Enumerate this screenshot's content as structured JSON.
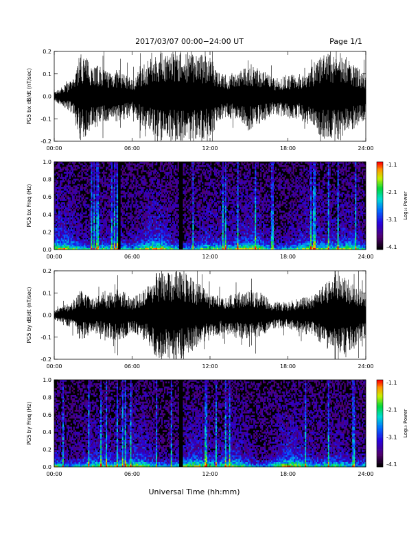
{
  "header": {
    "title": "2017/03/07   00:00−24:00 UT",
    "page": "Page 1/1"
  },
  "footer": {
    "xlabel": "Universal Time (hh:mm)"
  },
  "x_ticks": [
    "00:00",
    "06:00",
    "12:00",
    "18:00",
    "24:00"
  ],
  "colorbar": {
    "label": "Log₁₀ Power",
    "ticks": [
      "-1.1",
      "-2.1",
      "-3.1",
      "-4.1"
    ],
    "range": [
      -4.1,
      -1.1
    ]
  },
  "chart_data": [
    {
      "type": "line",
      "ylabel": "PG5 bx dB/dt (nT/sec)",
      "xlim": [
        0,
        24
      ],
      "ylim": [
        -0.2,
        0.2
      ],
      "y_ticks": [
        "0.2",
        "0.1",
        "0.0",
        "-0.1",
        "-0.2"
      ],
      "envelope": {
        "x": [
          0,
          1,
          1.5,
          2,
          3,
          4,
          5,
          6,
          7,
          8,
          9,
          9.5,
          10,
          11,
          12,
          13,
          14,
          15,
          16,
          17,
          18,
          19,
          20,
          21,
          22,
          23,
          24
        ],
        "amplitude": [
          0.02,
          0.06,
          0.08,
          0.2,
          0.15,
          0.12,
          0.12,
          0.08,
          0.15,
          0.2,
          0.2,
          0.2,
          0.2,
          0.2,
          0.18,
          0.1,
          0.1,
          0.15,
          0.12,
          0.08,
          0.1,
          0.1,
          0.15,
          0.2,
          0.2,
          0.15,
          0.1
        ]
      }
    },
    {
      "type": "heatmap",
      "ylabel": "PG5 bx Freq (Hz)",
      "xlim": [
        0,
        24
      ],
      "ylim": [
        0,
        1.0
      ],
      "y_ticks": [
        "1.0",
        "0.8",
        "0.6",
        "0.4",
        "0.2",
        "0.0"
      ]
    },
    {
      "type": "line",
      "ylabel": "PG5 by dB/dt (nT/sec)",
      "xlim": [
        0,
        24
      ],
      "ylim": [
        -0.2,
        0.2
      ],
      "y_ticks": [
        "0.2",
        "0.1",
        "0.0",
        "-0.1",
        "-0.2"
      ],
      "envelope": {
        "x": [
          0,
          1,
          1.5,
          2,
          3,
          4,
          5,
          6,
          7,
          8,
          9,
          9.5,
          10,
          11,
          12,
          13,
          14,
          15,
          16,
          17,
          18,
          19,
          20,
          21,
          22,
          23,
          24
        ],
        "amplitude": [
          0.02,
          0.05,
          0.06,
          0.12,
          0.08,
          0.1,
          0.12,
          0.08,
          0.12,
          0.2,
          0.2,
          0.2,
          0.2,
          0.15,
          0.1,
          0.08,
          0.1,
          0.12,
          0.1,
          0.06,
          0.06,
          0.08,
          0.1,
          0.15,
          0.2,
          0.15,
          0.1
        ]
      }
    },
    {
      "type": "heatmap",
      "ylabel": "PG5 by Freq (Hz)",
      "xlim": [
        0,
        24
      ],
      "ylim": [
        0,
        1.0
      ],
      "y_ticks": [
        "1.0",
        "0.8",
        "0.6",
        "0.4",
        "0.2",
        "0.0"
      ]
    }
  ]
}
